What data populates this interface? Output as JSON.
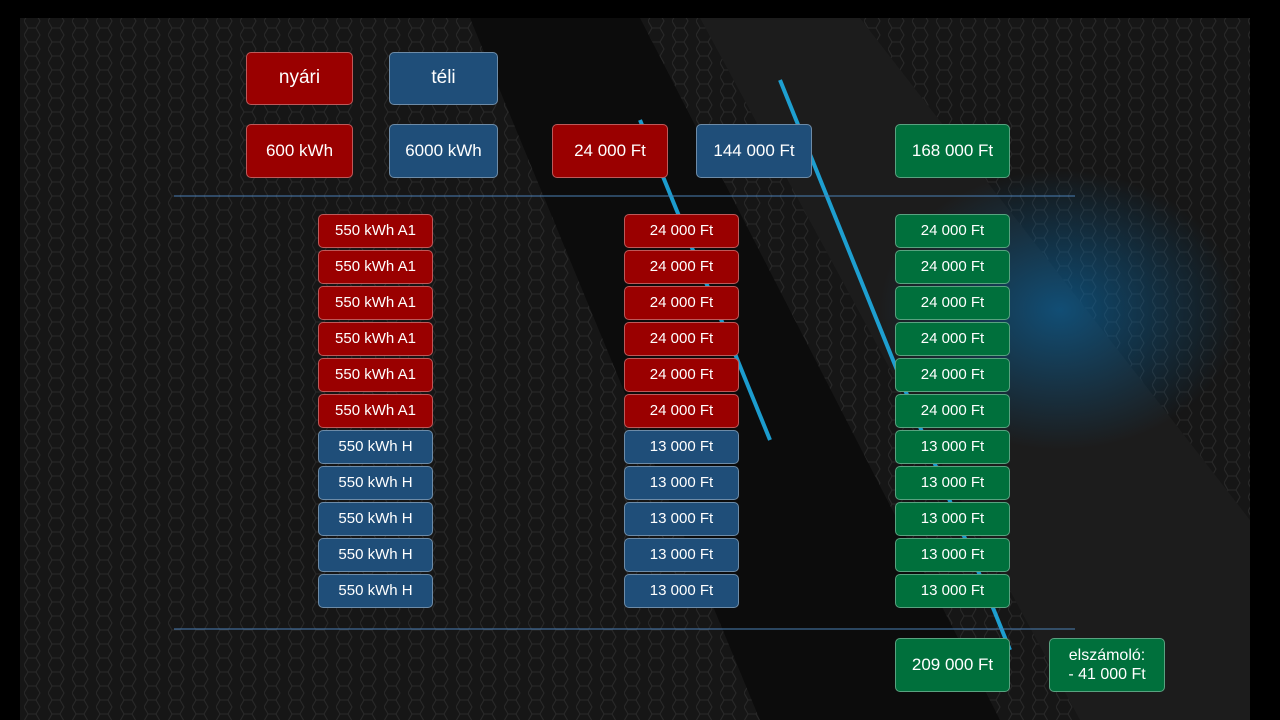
{
  "header": {
    "labels": [
      "nyári",
      "téli"
    ],
    "colors": [
      "#9a0000",
      "#1f4e79"
    ]
  },
  "summary": {
    "cells": [
      "600 kWh",
      "6000 kWh",
      "24 000 Ft",
      "144 000 Ft",
      "168 000 Ft"
    ],
    "colors": [
      "#9a0000",
      "#1f4e79",
      "#9a0000",
      "#1f4e79",
      "#00703c"
    ]
  },
  "table": {
    "column_colors": [
      null,
      null,
      "#00703c"
    ],
    "rows": [
      {
        "color": "#9a0000",
        "cells": [
          "550 kWh A1",
          "24 000 Ft",
          "24 000 Ft"
        ]
      },
      {
        "color": "#9a0000",
        "cells": [
          "550 kWh A1",
          "24 000 Ft",
          "24 000 Ft"
        ]
      },
      {
        "color": "#9a0000",
        "cells": [
          "550 kWh A1",
          "24 000 Ft",
          "24 000 Ft"
        ]
      },
      {
        "color": "#9a0000",
        "cells": [
          "550 kWh A1",
          "24 000 Ft",
          "24 000 Ft"
        ]
      },
      {
        "color": "#9a0000",
        "cells": [
          "550 kWh A1",
          "24 000 Ft",
          "24 000 Ft"
        ]
      },
      {
        "color": "#9a0000",
        "cells": [
          "550 kWh A1",
          "24 000 Ft",
          "24 000 Ft"
        ]
      },
      {
        "color": "#1f4e79",
        "cells": [
          "550 kWh H",
          "13 000 Ft",
          "13 000 Ft"
        ]
      },
      {
        "color": "#1f4e79",
        "cells": [
          "550 kWh H",
          "13 000 Ft",
          "13 000 Ft"
        ]
      },
      {
        "color": "#1f4e79",
        "cells": [
          "550 kWh H",
          "13 000 Ft",
          "13 000 Ft"
        ]
      },
      {
        "color": "#1f4e79",
        "cells": [
          "550 kWh H",
          "13 000 Ft",
          "13 000 Ft"
        ]
      },
      {
        "color": "#1f4e79",
        "cells": [
          "550 kWh H",
          "13 000 Ft",
          "13 000 Ft"
        ]
      }
    ]
  },
  "totals": {
    "total": "209 000 Ft",
    "settlement": [
      "elszámoló:",
      "- 41 000 Ft"
    ],
    "color": "#00703c"
  }
}
